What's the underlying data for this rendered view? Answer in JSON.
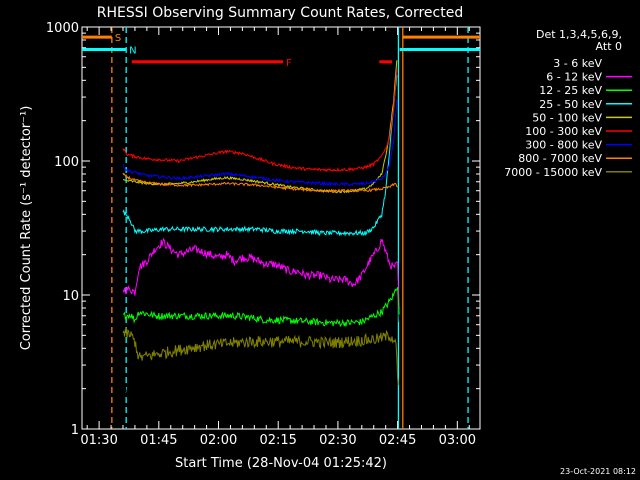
{
  "chart_data": {
    "type": "line",
    "title": "RHESSI Observing Summary Count Rates, Corrected",
    "xlabel": "Start Time (28-Nov-04 01:25:42)",
    "ylabel": "Corrected Count Rate (s⁻¹ detector⁻¹)",
    "timestamp": "23-Oct-2021 08:12",
    "y_scale": "log",
    "ylim": [
      1,
      1000
    ],
    "xlim": [
      85.7,
      185.7
    ],
    "x_ticks": [
      {
        "t": 90,
        "label": "01:30"
      },
      {
        "t": 105,
        "label": "01:45"
      },
      {
        "t": 120,
        "label": "02:00"
      },
      {
        "t": 135,
        "label": "02:15"
      },
      {
        "t": 150,
        "label": "02:30"
      },
      {
        "t": 165,
        "label": "02:45"
      },
      {
        "t": 180,
        "label": "03:00"
      }
    ],
    "y_ticks": [
      {
        "v": 1,
        "label": "1"
      },
      {
        "v": 10,
        "label": "10"
      },
      {
        "v": 100,
        "label": "100"
      },
      {
        "v": 1000,
        "label": "1000"
      }
    ],
    "legend": {
      "position": "right",
      "header": [
        "Det 1,3,4,5,6,9,",
        "Att 0"
      ],
      "entries": [
        {
          "name": "3 - 6 keV",
          "color": "#000000"
        },
        {
          "name": "6 - 12 keV",
          "color": "#ff00ff"
        },
        {
          "name": "12 - 25 keV",
          "color": "#00ff00"
        },
        {
          "name": "25 - 50 keV",
          "color": "#00ffff"
        },
        {
          "name": "50 - 100 keV",
          "color": "#cccc00"
        },
        {
          "name": "100 - 300 keV",
          "color": "#ff0000"
        },
        {
          "name": "300 - 800 keV",
          "color": "#0000ff"
        },
        {
          "name": "800 - 7000 keV",
          "color": "#ff8000"
        },
        {
          "name": "7000 - 15000 keV",
          "color": "#808000"
        }
      ]
    },
    "series": [
      {
        "name": "3 - 6 keV",
        "color": "#000000",
        "noise": 0.1,
        "points": [
          [
            96,
            2.1
          ],
          [
            97.5,
            1.6
          ],
          [
            98.5,
            1.2
          ],
          [
            99.5,
            20
          ],
          [
            100.5,
            26
          ],
          [
            102,
            30
          ],
          [
            103.5,
            40
          ],
          [
            105,
            38
          ],
          [
            106.5,
            36
          ],
          [
            108,
            35
          ],
          [
            110,
            31
          ],
          [
            112,
            28
          ],
          [
            114,
            30
          ],
          [
            116,
            34
          ],
          [
            118,
            30
          ],
          [
            120,
            28
          ],
          [
            122,
            30
          ],
          [
            124,
            33
          ],
          [
            126,
            32
          ],
          [
            128,
            34
          ],
          [
            130,
            30
          ],
          [
            132,
            31
          ],
          [
            134,
            31
          ],
          [
            136,
            28
          ],
          [
            138,
            28
          ],
          [
            140,
            26
          ],
          [
            142,
            25
          ],
          [
            144,
            23
          ],
          [
            146,
            22
          ],
          [
            148,
            20
          ],
          [
            150,
            19
          ],
          [
            152,
            18
          ],
          [
            154,
            17
          ],
          [
            156,
            17
          ],
          [
            158,
            18
          ],
          [
            160,
            24
          ],
          [
            161,
            27
          ],
          [
            162,
            22
          ],
          [
            163,
            17
          ],
          [
            164,
            16
          ],
          [
            165,
            12
          ],
          [
            165.5,
            5
          ]
        ]
      },
      {
        "name": "6 - 12 keV",
        "color": "#ff00ff",
        "noise": 0.07,
        "points": [
          [
            96,
            11
          ],
          [
            98,
            11
          ],
          [
            99,
            10.5
          ],
          [
            100,
            16
          ],
          [
            102,
            18
          ],
          [
            104,
            22
          ],
          [
            106,
            25
          ],
          [
            108,
            22
          ],
          [
            110,
            20
          ],
          [
            112,
            21
          ],
          [
            114,
            22
          ],
          [
            116,
            21
          ],
          [
            118,
            20
          ],
          [
            120,
            19
          ],
          [
            122,
            20
          ],
          [
            124,
            18
          ],
          [
            126,
            19
          ],
          [
            128,
            19
          ],
          [
            130,
            18
          ],
          [
            132,
            17
          ],
          [
            134,
            17
          ],
          [
            136,
            16
          ],
          [
            138,
            15
          ],
          [
            140,
            15
          ],
          [
            142,
            14
          ],
          [
            144,
            14
          ],
          [
            146,
            14
          ],
          [
            148,
            13
          ],
          [
            150,
            13
          ],
          [
            152,
            13
          ],
          [
            154,
            12
          ],
          [
            156,
            14
          ],
          [
            158,
            18
          ],
          [
            160,
            22
          ],
          [
            161,
            26
          ],
          [
            162,
            21
          ],
          [
            163,
            17
          ],
          [
            164,
            16
          ],
          [
            165,
            17
          ],
          [
            165.5,
            6
          ]
        ]
      },
      {
        "name": "12 - 25 keV",
        "color": "#00ff00",
        "noise": 0.06,
        "points": [
          [
            96,
            7
          ],
          [
            98,
            7.1
          ],
          [
            99,
            6.5
          ],
          [
            100,
            7.5
          ],
          [
            104,
            7
          ],
          [
            108,
            7
          ],
          [
            112,
            7
          ],
          [
            116,
            7
          ],
          [
            120,
            7
          ],
          [
            124,
            7
          ],
          [
            128,
            6.8
          ],
          [
            132,
            6.5
          ],
          [
            136,
            6.5
          ],
          [
            140,
            6.4
          ],
          [
            144,
            6.3
          ],
          [
            148,
            6.2
          ],
          [
            152,
            6.2
          ],
          [
            156,
            6.3
          ],
          [
            159,
            7
          ],
          [
            161,
            7.5
          ],
          [
            163,
            9
          ],
          [
            164,
            10
          ],
          [
            165,
            12
          ],
          [
            165.5,
            6
          ]
        ]
      },
      {
        "name": "25 - 50 keV",
        "color": "#00ffff",
        "noise": 0.04,
        "points": [
          [
            96,
            42
          ],
          [
            97.5,
            38
          ],
          [
            99,
            30
          ],
          [
            102,
            30
          ],
          [
            106,
            31
          ],
          [
            110,
            31
          ],
          [
            114,
            31
          ],
          [
            118,
            31
          ],
          [
            122,
            31
          ],
          [
            126,
            31
          ],
          [
            130,
            31
          ],
          [
            134,
            30
          ],
          [
            138,
            30
          ],
          [
            142,
            30
          ],
          [
            146,
            29
          ],
          [
            150,
            29
          ],
          [
            154,
            29
          ],
          [
            157,
            29
          ],
          [
            159,
            32
          ],
          [
            161,
            40
          ],
          [
            162,
            60
          ],
          [
            163,
            120
          ],
          [
            164,
            250
          ],
          [
            164.8,
            450
          ]
        ]
      },
      {
        "name": "50 - 100 keV",
        "color": "#cccc00",
        "noise": 0.02,
        "points": [
          [
            96,
            72
          ],
          [
            99,
            70
          ],
          [
            102,
            68
          ],
          [
            106,
            67
          ],
          [
            110,
            68
          ],
          [
            114,
            70
          ],
          [
            118,
            73
          ],
          [
            122,
            75
          ],
          [
            126,
            73
          ],
          [
            130,
            70
          ],
          [
            134,
            67
          ],
          [
            138,
            64
          ],
          [
            142,
            62
          ],
          [
            146,
            60
          ],
          [
            150,
            59
          ],
          [
            154,
            60
          ],
          [
            157,
            62
          ],
          [
            159,
            68
          ],
          [
            161,
            80
          ],
          [
            162,
            110
          ],
          [
            163,
            160
          ],
          [
            164,
            280
          ],
          [
            164.8,
            560
          ]
        ]
      },
      {
        "name": "100 - 300 keV",
        "color": "#ff0000",
        "noise": 0.025,
        "points": [
          [
            96,
            125
          ],
          [
            97,
            112
          ],
          [
            99,
            108
          ],
          [
            102,
            104
          ],
          [
            106,
            102
          ],
          [
            110,
            100
          ],
          [
            114,
            106
          ],
          [
            118,
            112
          ],
          [
            122,
            118
          ],
          [
            126,
            114
          ],
          [
            130,
            104
          ],
          [
            134,
            95
          ],
          [
            138,
            90
          ],
          [
            142,
            87
          ],
          [
            146,
            86
          ],
          [
            150,
            86
          ],
          [
            154,
            87
          ],
          [
            157,
            90
          ],
          [
            159,
            95
          ],
          [
            161,
            108
          ],
          [
            162,
            125
          ],
          [
            163,
            150
          ],
          [
            164,
            250
          ],
          [
            164.8,
            480
          ]
        ]
      },
      {
        "name": "300 - 800 keV",
        "color": "#0000ff",
        "noise": 0.025,
        "points": [
          [
            96,
            92
          ],
          [
            97,
            85
          ],
          [
            99,
            82
          ],
          [
            102,
            78
          ],
          [
            106,
            76
          ],
          [
            110,
            74
          ],
          [
            114,
            76
          ],
          [
            118,
            78
          ],
          [
            122,
            80
          ],
          [
            126,
            78
          ],
          [
            130,
            75
          ],
          [
            134,
            72
          ],
          [
            138,
            70
          ],
          [
            142,
            69
          ],
          [
            146,
            68
          ],
          [
            150,
            67
          ],
          [
            154,
            67
          ],
          [
            157,
            68
          ],
          [
            159,
            70
          ],
          [
            161,
            74
          ],
          [
            162,
            80
          ],
          [
            163,
            95
          ],
          [
            164,
            140
          ],
          [
            164.8,
            280
          ]
        ]
      },
      {
        "name": "800 - 7000 keV",
        "color": "#ff8000",
        "noise": 0.02,
        "points": [
          [
            96,
            80
          ],
          [
            97,
            76
          ],
          [
            99,
            72
          ],
          [
            102,
            69
          ],
          [
            106,
            67
          ],
          [
            110,
            66
          ],
          [
            114,
            66
          ],
          [
            118,
            67
          ],
          [
            122,
            68
          ],
          [
            126,
            67
          ],
          [
            130,
            66
          ],
          [
            134,
            64
          ],
          [
            138,
            62
          ],
          [
            142,
            61
          ],
          [
            146,
            60
          ],
          [
            150,
            60
          ],
          [
            154,
            60
          ],
          [
            157,
            60
          ],
          [
            159,
            61
          ],
          [
            161,
            62
          ],
          [
            163,
            64
          ],
          [
            164.5,
            68
          ],
          [
            165,
            64
          ]
        ]
      },
      {
        "name": "7000 - 15000 keV",
        "color": "#808000",
        "noise": 0.1,
        "points": [
          [
            96,
            5.2
          ],
          [
            98,
            5
          ],
          [
            99,
            4.5
          ],
          [
            100,
            3.4
          ],
          [
            104,
            3.6
          ],
          [
            108,
            3.8
          ],
          [
            112,
            4
          ],
          [
            116,
            4.2
          ],
          [
            120,
            4.3
          ],
          [
            124,
            4.4
          ],
          [
            128,
            4.5
          ],
          [
            132,
            4.5
          ],
          [
            136,
            4.5
          ],
          [
            140,
            4.5
          ],
          [
            144,
            4.5
          ],
          [
            148,
            4.4
          ],
          [
            152,
            4.5
          ],
          [
            156,
            4.6
          ],
          [
            160,
            4.7
          ],
          [
            163,
            5
          ],
          [
            164.5,
            4.6
          ],
          [
            165.2,
            2
          ]
        ]
      }
    ],
    "vertical_lines": [
      {
        "t": 93.2,
        "color": "#ff8000",
        "style": "dashed"
      },
      {
        "t": 96.8,
        "color": "#00ffff",
        "style": "dashed"
      },
      {
        "t": 165.2,
        "color": "#00ffff",
        "style": "solid"
      },
      {
        "t": 166.3,
        "color": "#ff8000",
        "style": "solid"
      },
      {
        "t": 182.7,
        "color": "#00ffff",
        "style": "dashed"
      }
    ],
    "flag_bars": [
      {
        "label": "S",
        "color": "#ff8000",
        "segments": [
          [
            85.7,
            93.2
          ],
          [
            166.3,
            185.7
          ]
        ],
        "level": 840
      },
      {
        "label": "N",
        "color": "#00ffff",
        "segments": [
          [
            85.7,
            96.8
          ],
          [
            165.5,
            185.7
          ]
        ],
        "level": 680
      },
      {
        "label": "F",
        "color": "#ff0000",
        "segments": [
          [
            98.2,
            136.2
          ],
          [
            160.4,
            163.6
          ]
        ],
        "level": 550
      }
    ]
  }
}
